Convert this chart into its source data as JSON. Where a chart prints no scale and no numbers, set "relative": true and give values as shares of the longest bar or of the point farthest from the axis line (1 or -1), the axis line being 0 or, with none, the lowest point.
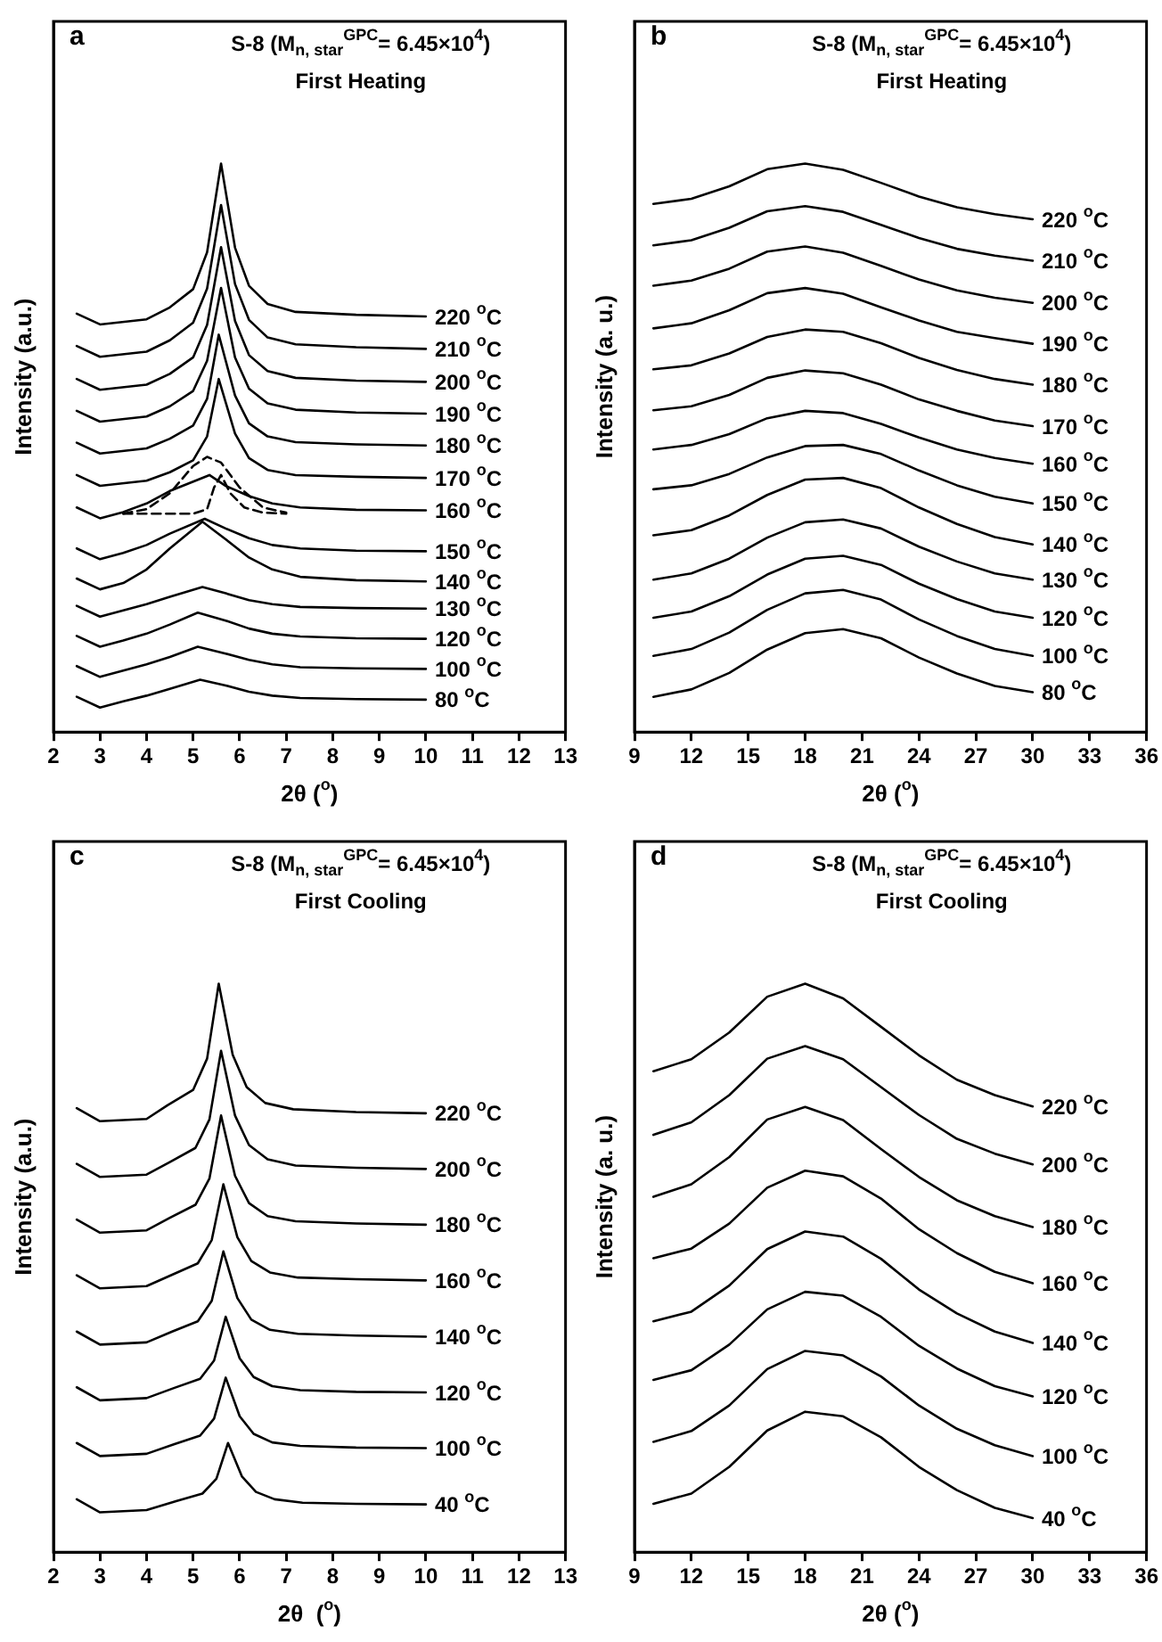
{
  "chart_data": [
    {
      "type": "line",
      "title": "S-8 (M$_{n, star}$$^{GPC}$= 6.45×10$^{4}$)",
      "subtitle": "First Heating",
      "xlabel": "2θ ($^{o}$)",
      "ylabel": "Intensity (a.u.)",
      "annotations": [
        "a"
      ],
      "xlim": [
        2,
        13
      ],
      "xticks": [
        2,
        3,
        4,
        5,
        6,
        7,
        8,
        9,
        10,
        11,
        12,
        13
      ],
      "relative": true,
      "legend": false,
      "grid": false,
      "marker": "none",
      "series": [
        {
          "name": "220 $^{o}$C",
          "color": "#000000",
          "x": [
            2.5,
            3,
            4,
            4.5,
            5,
            5.3,
            5.6,
            5.9,
            6.2,
            6.6,
            7.2,
            8.5,
            10
          ],
          "values": [
            0.736,
            0.717,
            0.726,
            0.747,
            0.779,
            0.844,
            1.0,
            0.852,
            0.785,
            0.753,
            0.739,
            0.734,
            0.731
          ]
        },
        {
          "name": "210 $^{o}$C",
          "color": "#000000",
          "x": [
            2.5,
            3,
            4,
            4.5,
            5,
            5.3,
            5.6,
            5.9,
            6.2,
            6.6,
            7.2,
            8.5,
            10
          ],
          "values": [
            0.679,
            0.66,
            0.669,
            0.689,
            0.72,
            0.78,
            0.927,
            0.788,
            0.725,
            0.694,
            0.682,
            0.677,
            0.674
          ]
        },
        {
          "name": "200 $^{o}$C",
          "color": "#000000",
          "x": [
            2.5,
            3,
            4,
            4.5,
            5,
            5.3,
            5.6,
            5.9,
            6.2,
            6.6,
            7.2,
            8.5,
            10
          ],
          "values": [
            0.621,
            0.602,
            0.611,
            0.63,
            0.659,
            0.716,
            0.853,
            0.723,
            0.663,
            0.635,
            0.623,
            0.618,
            0.616
          ]
        },
        {
          "name": "190 $^{o}$C",
          "color": "#000000",
          "x": [
            2.5,
            3,
            4,
            4.5,
            5,
            5.3,
            5.6,
            5.9,
            6.2,
            6.6,
            7.2,
            8.5,
            10
          ],
          "values": [
            0.565,
            0.546,
            0.555,
            0.573,
            0.6,
            0.653,
            0.781,
            0.659,
            0.604,
            0.578,
            0.567,
            0.562,
            0.56
          ]
        },
        {
          "name": "180 $^{o}$C",
          "color": "#000000",
          "x": [
            2.5,
            3,
            4,
            4.5,
            5,
            5.3,
            5.55,
            5.9,
            6.2,
            6.6,
            7.2,
            8.5,
            10
          ],
          "values": [
            0.509,
            0.49,
            0.499,
            0.516,
            0.539,
            0.586,
            0.699,
            0.592,
            0.543,
            0.52,
            0.51,
            0.506,
            0.504
          ]
        },
        {
          "name": "170 $^{o}$C",
          "color": "#000000",
          "x": [
            2.5,
            3,
            4,
            4.5,
            5,
            5.3,
            5.55,
            5.9,
            6.2,
            6.6,
            7.2,
            8.5,
            10
          ],
          "values": [
            0.452,
            0.433,
            0.442,
            0.457,
            0.478,
            0.52,
            0.621,
            0.525,
            0.482,
            0.461,
            0.452,
            0.449,
            0.447
          ]
        },
        {
          "name": "160 $^{o}$C",
          "color": "#000000",
          "x": [
            2.5,
            3,
            3.5,
            4,
            4.5,
            5.35,
            5.7,
            6.2,
            6.7,
            7.3,
            8.5,
            10
          ],
          "values": [
            0.395,
            0.376,
            0.387,
            0.402,
            0.424,
            0.452,
            0.433,
            0.415,
            0.402,
            0.395,
            0.391,
            0.39
          ]
        },
        {
          "color": "#000000",
          "line_style": "dashed",
          "x": [
            3.5,
            4,
            4.5,
            5,
            5.3,
            5.6,
            6,
            6.5,
            7
          ],
          "values": [
            0.384,
            0.392,
            0.42,
            0.468,
            0.484,
            0.474,
            0.43,
            0.395,
            0.386
          ]
        },
        {
          "color": "#000000",
          "line_style": "dashed",
          "x": [
            3.5,
            5,
            5.3,
            5.45,
            5.6,
            5.8,
            6.1,
            6.5,
            7
          ],
          "values": [
            0.384,
            0.384,
            0.392,
            0.43,
            0.452,
            0.42,
            0.395,
            0.386,
            0.384
          ]
        },
        {
          "name": "150 $^{o}$C",
          "color": "#000000",
          "x": [
            2.5,
            3,
            3.5,
            4,
            4.5,
            5.25,
            5.7,
            6.2,
            6.7,
            7.3,
            8.5,
            10
          ],
          "values": [
            0.323,
            0.304,
            0.315,
            0.329,
            0.349,
            0.375,
            0.358,
            0.341,
            0.329,
            0.323,
            0.319,
            0.318
          ]
        },
        {
          "name": "140 $^{o}$C",
          "color": "#000000",
          "x": [
            2.5,
            3,
            3.5,
            4,
            4.5,
            5.2,
            5.7,
            6.2,
            6.7,
            7.3,
            8.5,
            10
          ],
          "values": [
            0.27,
            0.251,
            0.262,
            0.286,
            0.323,
            0.37,
            0.339,
            0.307,
            0.286,
            0.273,
            0.267,
            0.265
          ]
        },
        {
          "name": "130 $^{o}$C",
          "color": "#000000",
          "x": [
            2.5,
            3,
            3.5,
            4,
            4.5,
            5.2,
            5.7,
            6.2,
            6.7,
            7.3,
            8.5,
            10
          ],
          "values": [
            0.222,
            0.203,
            0.214,
            0.225,
            0.238,
            0.255,
            0.244,
            0.232,
            0.225,
            0.22,
            0.218,
            0.217
          ]
        },
        {
          "name": "120 $^{o}$C",
          "color": "#000000",
          "x": [
            2.5,
            3,
            3.5,
            4,
            4.5,
            5.1,
            5.7,
            6.2,
            6.7,
            7.3,
            8.5,
            10
          ],
          "values": [
            0.169,
            0.15,
            0.161,
            0.173,
            0.189,
            0.21,
            0.196,
            0.182,
            0.173,
            0.168,
            0.165,
            0.164
          ]
        },
        {
          "name": "100 $^{o}$C",
          "color": "#000000",
          "x": [
            2.5,
            3,
            3.5,
            4,
            4.5,
            5.1,
            5.7,
            6.2,
            6.7,
            7.3,
            8.5,
            10
          ],
          "values": [
            0.116,
            0.097,
            0.108,
            0.119,
            0.132,
            0.15,
            0.138,
            0.127,
            0.119,
            0.114,
            0.112,
            0.111
          ]
        },
        {
          "name": "80 $^{o}$C",
          "color": "#000000",
          "x": [
            2.5,
            3,
            3.5,
            4,
            4.5,
            5.15,
            5.7,
            6.2,
            6.7,
            7.3,
            8.5,
            10
          ],
          "values": [
            0.062,
            0.043,
            0.054,
            0.064,
            0.076,
            0.092,
            0.082,
            0.071,
            0.064,
            0.06,
            0.058,
            0.057
          ]
        }
      ]
    },
    {
      "type": "line",
      "title": "S-8 (M$_{n, star}$$^{GPC}$= 6.45×10$^{4}$)",
      "subtitle": "First Heating",
      "xlabel": "2θ ($^{o}$)",
      "ylabel": "Intensity (a. u.)",
      "annotations": [
        "b"
      ],
      "xlim": [
        9,
        36
      ],
      "xticks": [
        9,
        12,
        15,
        18,
        21,
        24,
        27,
        30,
        33,
        36
      ],
      "relative": true,
      "legend": false,
      "grid": false,
      "marker": "none",
      "series": [
        {
          "name": "220 $^{o}$C",
          "color": "#000000",
          "x": [
            10,
            12,
            14,
            16,
            18,
            20,
            22,
            24,
            26,
            28,
            30
          ],
          "values": [
            0.929,
            0.938,
            0.96,
            0.99,
            1.0,
            0.989,
            0.966,
            0.942,
            0.923,
            0.911,
            0.902
          ]
        },
        {
          "name": "210 $^{o}$C",
          "color": "#000000",
          "x": [
            10,
            12,
            14,
            16,
            18,
            20,
            22,
            24,
            26,
            28,
            30
          ],
          "values": [
            0.856,
            0.865,
            0.887,
            0.916,
            0.925,
            0.915,
            0.892,
            0.869,
            0.85,
            0.838,
            0.829
          ]
        },
        {
          "name": "200 $^{o}$C",
          "color": "#000000",
          "x": [
            10,
            12,
            14,
            16,
            18,
            20,
            22,
            24,
            26,
            28,
            30
          ],
          "values": [
            0.785,
            0.794,
            0.815,
            0.845,
            0.854,
            0.843,
            0.82,
            0.796,
            0.777,
            0.764,
            0.755
          ]
        },
        {
          "name": "190 $^{o}$C",
          "color": "#000000",
          "x": [
            10,
            12,
            14,
            16,
            18,
            20,
            22,
            24,
            26,
            28,
            30
          ],
          "values": [
            0.71,
            0.719,
            0.742,
            0.772,
            0.781,
            0.771,
            0.747,
            0.724,
            0.704,
            0.693,
            0.683
          ]
        },
        {
          "name": "180 $^{o}$C",
          "color": "#000000",
          "x": [
            10,
            12,
            14,
            16,
            18,
            20,
            22,
            24,
            26,
            28,
            30
          ],
          "values": [
            0.638,
            0.645,
            0.666,
            0.695,
            0.708,
            0.704,
            0.684,
            0.658,
            0.637,
            0.621,
            0.611
          ]
        },
        {
          "name": "170 $^{o}$C",
          "color": "#000000",
          "x": [
            10,
            12,
            14,
            16,
            18,
            20,
            22,
            24,
            26,
            28,
            30
          ],
          "values": [
            0.566,
            0.573,
            0.593,
            0.623,
            0.636,
            0.631,
            0.611,
            0.585,
            0.565,
            0.548,
            0.538
          ]
        },
        {
          "name": "160 $^{o}$C",
          "color": "#000000",
          "x": [
            10,
            12,
            14,
            16,
            18,
            20,
            22,
            24,
            26,
            28,
            30
          ],
          "values": [
            0.497,
            0.505,
            0.524,
            0.552,
            0.565,
            0.561,
            0.542,
            0.518,
            0.497,
            0.482,
            0.472
          ]
        },
        {
          "name": "150 $^{o}$C",
          "color": "#000000",
          "x": [
            10,
            12,
            14,
            16,
            18,
            20,
            22,
            24,
            26,
            28,
            30
          ],
          "values": [
            0.427,
            0.434,
            0.454,
            0.483,
            0.503,
            0.505,
            0.489,
            0.46,
            0.434,
            0.414,
            0.402
          ]
        },
        {
          "name": "140 $^{o}$C",
          "color": "#000000",
          "x": [
            10,
            12,
            14,
            16,
            18,
            20,
            22,
            24,
            26,
            28,
            30
          ],
          "values": [
            0.346,
            0.355,
            0.381,
            0.417,
            0.444,
            0.447,
            0.429,
            0.395,
            0.366,
            0.343,
            0.33
          ]
        },
        {
          "name": "130 $^{o}$C",
          "color": "#000000",
          "x": [
            10,
            12,
            14,
            16,
            18,
            20,
            22,
            24,
            26,
            28,
            30
          ],
          "values": [
            0.268,
            0.279,
            0.305,
            0.342,
            0.369,
            0.374,
            0.358,
            0.326,
            0.3,
            0.279,
            0.268
          ]
        },
        {
          "name": "120 $^{o}$C",
          "color": "#000000",
          "x": [
            10,
            12,
            14,
            16,
            18,
            20,
            22,
            24,
            26,
            28,
            30
          ],
          "values": [
            0.201,
            0.212,
            0.239,
            0.277,
            0.305,
            0.31,
            0.294,
            0.261,
            0.234,
            0.212,
            0.201
          ]
        },
        {
          "name": "100 $^{o}$C",
          "color": "#000000",
          "x": [
            10,
            12,
            14,
            16,
            18,
            20,
            22,
            24,
            26,
            28,
            30
          ],
          "values": [
            0.134,
            0.146,
            0.175,
            0.215,
            0.244,
            0.25,
            0.233,
            0.198,
            0.169,
            0.146,
            0.134
          ]
        },
        {
          "name": "80 $^{o}$C",
          "color": "#000000",
          "x": [
            10,
            12,
            14,
            16,
            18,
            20,
            22,
            24,
            26,
            28,
            30
          ],
          "values": [
            0.062,
            0.075,
            0.104,
            0.145,
            0.174,
            0.181,
            0.165,
            0.131,
            0.103,
            0.081,
            0.07
          ]
        }
      ]
    },
    {
      "type": "line",
      "title": "S-8 (M$_{n, star}$$^{GPC}$= 6.45×10$^{4}$)",
      "subtitle": "First Cooling",
      "xlabel": "2θ  ($^{o}$)",
      "ylabel": "Intensity (a.u.)",
      "annotations": [
        "c"
      ],
      "xlim": [
        2,
        13
      ],
      "xticks": [
        2,
        3,
        4,
        5,
        6,
        7,
        8,
        9,
        10,
        11,
        12,
        13
      ],
      "relative": true,
      "legend": false,
      "grid": false,
      "marker": "none",
      "series": [
        {
          "name": "220 $^{o}$C",
          "color": "#000000",
          "x": [
            2.5,
            3,
            4,
            4.45,
            5,
            5.3,
            5.55,
            5.85,
            6.15,
            6.55,
            7.15,
            8.5,
            10
          ],
          "values": [
            0.781,
            0.758,
            0.762,
            0.786,
            0.813,
            0.868,
            1.0,
            0.875,
            0.818,
            0.79,
            0.779,
            0.774,
            0.772
          ]
        },
        {
          "name": "200 $^{o}$C",
          "color": "#000000",
          "x": [
            2.5,
            3,
            4,
            4.5,
            5.05,
            5.35,
            5.6,
            5.9,
            6.2,
            6.6,
            7.2,
            8.5,
            10
          ],
          "values": [
            0.683,
            0.66,
            0.664,
            0.686,
            0.711,
            0.761,
            0.882,
            0.768,
            0.716,
            0.691,
            0.68,
            0.676,
            0.674
          ]
        },
        {
          "name": "180 $^{o}$C",
          "color": "#000000",
          "x": [
            2.5,
            3,
            4,
            4.5,
            5.05,
            5.35,
            5.6,
            5.9,
            6.2,
            6.6,
            7.2,
            8.5,
            10
          ],
          "values": [
            0.585,
            0.562,
            0.566,
            0.588,
            0.611,
            0.657,
            0.768,
            0.662,
            0.614,
            0.591,
            0.582,
            0.578,
            0.576
          ]
        },
        {
          "name": "160 $^{o}$C",
          "color": "#000000",
          "x": [
            2.5,
            3,
            4,
            4.55,
            5.1,
            5.4,
            5.65,
            5.95,
            6.25,
            6.65,
            7.25,
            8.5,
            10
          ],
          "values": [
            0.487,
            0.464,
            0.468,
            0.488,
            0.508,
            0.549,
            0.647,
            0.554,
            0.512,
            0.492,
            0.483,
            0.48,
            0.478
          ]
        },
        {
          "name": "140 $^{o}$C",
          "color": "#000000",
          "x": [
            2.5,
            3,
            4,
            4.55,
            5.1,
            5.4,
            5.65,
            5.95,
            6.25,
            6.65,
            7.25,
            8.5,
            10
          ],
          "values": [
            0.388,
            0.365,
            0.369,
            0.388,
            0.406,
            0.442,
            0.529,
            0.447,
            0.409,
            0.391,
            0.384,
            0.381,
            0.379
          ]
        },
        {
          "name": "120 $^{o}$C",
          "color": "#000000",
          "x": [
            2.5,
            3,
            4,
            4.6,
            5.15,
            5.45,
            5.7,
            6,
            6.3,
            6.7,
            7.3,
            8.5,
            10
          ],
          "values": [
            0.29,
            0.267,
            0.271,
            0.289,
            0.305,
            0.337,
            0.414,
            0.341,
            0.308,
            0.292,
            0.285,
            0.282,
            0.281
          ]
        },
        {
          "name": "100 $^{o}$C",
          "color": "#000000",
          "x": [
            2.5,
            3,
            4,
            4.6,
            5.15,
            5.45,
            5.7,
            6,
            6.3,
            6.7,
            7.3,
            8.5,
            10
          ],
          "values": [
            0.192,
            0.169,
            0.173,
            0.19,
            0.205,
            0.235,
            0.307,
            0.239,
            0.208,
            0.193,
            0.187,
            0.184,
            0.183
          ]
        },
        {
          "name": "40 $^{o}$C",
          "color": "#000000",
          "x": [
            2.5,
            3,
            4,
            4.65,
            5.2,
            5.5,
            5.75,
            6.05,
            6.35,
            6.75,
            7.35,
            8.5,
            10
          ],
          "values": [
            0.093,
            0.07,
            0.074,
            0.09,
            0.103,
            0.129,
            0.192,
            0.133,
            0.106,
            0.093,
            0.087,
            0.085,
            0.084
          ]
        }
      ]
    },
    {
      "type": "line",
      "title": "S-8 (M$_{n, star}$$^{GPC}$= 6.45×10$^{4}$)",
      "subtitle": "First Cooling",
      "xlabel": "2θ ($^{o}$)",
      "ylabel": "Intensity (a. u.)",
      "annotations": [
        "d"
      ],
      "xlim": [
        9,
        36
      ],
      "xticks": [
        9,
        12,
        15,
        18,
        21,
        24,
        27,
        30,
        33,
        36
      ],
      "relative": true,
      "legend": false,
      "grid": false,
      "marker": "none",
      "series": [
        {
          "name": "220 $^{o}$C",
          "color": "#000000",
          "x": [
            10,
            12,
            14,
            16,
            18,
            20,
            22,
            24,
            26,
            28,
            30
          ],
          "values": [
            0.846,
            0.867,
            0.914,
            0.977,
            1.0,
            0.974,
            0.924,
            0.874,
            0.831,
            0.804,
            0.784
          ]
        },
        {
          "name": "200 $^{o}$C",
          "color": "#000000",
          "x": [
            10,
            12,
            14,
            16,
            18,
            20,
            22,
            24,
            26,
            28,
            30
          ],
          "values": [
            0.734,
            0.756,
            0.804,
            0.868,
            0.89,
            0.867,
            0.818,
            0.769,
            0.727,
            0.701,
            0.682
          ]
        },
        {
          "name": "180 $^{o}$C",
          "color": "#000000",
          "x": [
            10,
            12,
            14,
            16,
            18,
            20,
            22,
            24,
            26,
            28,
            30
          ],
          "values": [
            0.625,
            0.647,
            0.695,
            0.761,
            0.783,
            0.76,
            0.709,
            0.66,
            0.619,
            0.591,
            0.572
          ]
        },
        {
          "name": "160 $^{o}$C",
          "color": "#000000",
          "x": [
            10,
            12,
            14,
            16,
            18,
            20,
            22,
            24,
            26,
            28,
            30
          ],
          "values": [
            0.517,
            0.534,
            0.578,
            0.641,
            0.671,
            0.661,
            0.622,
            0.568,
            0.526,
            0.493,
            0.473
          ]
        },
        {
          "name": "140 $^{o}$C",
          "color": "#000000",
          "x": [
            10,
            12,
            14,
            16,
            18,
            20,
            22,
            24,
            26,
            28,
            30
          ],
          "values": [
            0.406,
            0.423,
            0.469,
            0.533,
            0.564,
            0.555,
            0.516,
            0.462,
            0.42,
            0.388,
            0.368
          ]
        },
        {
          "name": "120 $^{o}$C",
          "color": "#000000",
          "x": [
            10,
            12,
            14,
            16,
            18,
            20,
            22,
            24,
            26,
            28,
            30
          ],
          "values": [
            0.303,
            0.32,
            0.365,
            0.427,
            0.458,
            0.451,
            0.414,
            0.363,
            0.323,
            0.292,
            0.274
          ]
        },
        {
          "name": "100 $^{o}$C",
          "color": "#000000",
          "x": [
            10,
            12,
            14,
            16,
            18,
            20,
            22,
            24,
            26,
            28,
            30
          ],
          "values": [
            0.194,
            0.213,
            0.258,
            0.322,
            0.354,
            0.346,
            0.309,
            0.258,
            0.217,
            0.188,
            0.169
          ]
        },
        {
          "name": "40 $^{o}$C",
          "color": "#000000",
          "x": [
            10,
            12,
            14,
            16,
            18,
            20,
            22,
            24,
            26,
            28,
            30
          ],
          "values": [
            0.085,
            0.103,
            0.15,
            0.214,
            0.247,
            0.239,
            0.202,
            0.15,
            0.109,
            0.078,
            0.06
          ]
        }
      ]
    }
  ]
}
